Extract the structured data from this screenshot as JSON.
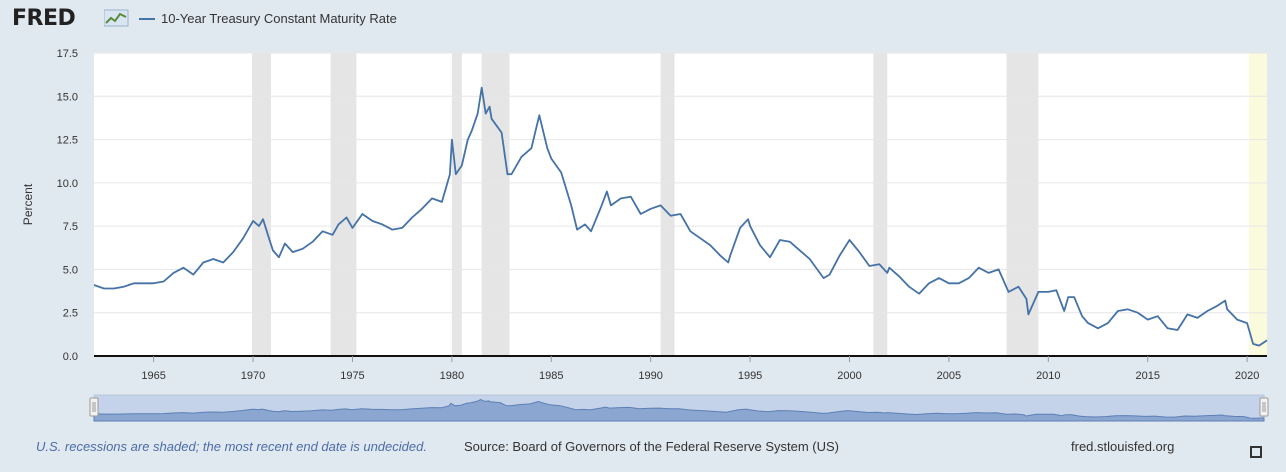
{
  "header": {
    "logo_text": "FRED",
    "series_name": "10-Year Treasury Constant Maturity Rate"
  },
  "footer": {
    "recession_note": "U.S. recessions are shaded; the most recent end date is undecided.",
    "source": "Source: Board of Governors of the Federal Reserve System (US)",
    "site": "fred.stlouisfed.org"
  },
  "colors": {
    "line": "#4572a7",
    "recession_shade": "#e5e5e5",
    "undecided_shade": "#fafadc",
    "background": "#e1e9f0",
    "plot_bg": "#ffffff"
  },
  "chart_data": {
    "type": "line",
    "title": "",
    "ylabel": "Percent",
    "xlabel": "",
    "ylim": [
      0,
      17.5
    ],
    "xlim": [
      1962.0,
      2021.0
    ],
    "y_ticks": [
      "0.0",
      "2.5",
      "5.0",
      "7.5",
      "10.0",
      "12.5",
      "15.0",
      "17.5"
    ],
    "x_ticks": [
      "1965",
      "1970",
      "1975",
      "1980",
      "1985",
      "1990",
      "1995",
      "2000",
      "2005",
      "2010",
      "2015",
      "2020"
    ],
    "grid": "horizontal",
    "series": [
      {
        "name": "10-Year Treasury Constant Maturity Rate",
        "x": [
          1962.0,
          1962.5,
          1963.0,
          1963.5,
          1964.0,
          1964.5,
          1965.0,
          1965.5,
          1966.0,
          1966.5,
          1967.0,
          1967.5,
          1968.0,
          1968.5,
          1969.0,
          1969.5,
          1970.0,
          1970.3,
          1970.5,
          1970.8,
          1971.0,
          1971.3,
          1971.6,
          1972.0,
          1972.5,
          1973.0,
          1973.5,
          1974.0,
          1974.3,
          1974.7,
          1975.0,
          1975.5,
          1976.0,
          1976.5,
          1977.0,
          1977.5,
          1978.0,
          1978.5,
          1979.0,
          1979.5,
          1979.9,
          1980.0,
          1980.2,
          1980.5,
          1980.8,
          1981.0,
          1981.3,
          1981.5,
          1981.7,
          1981.9,
          1982.0,
          1982.5,
          1982.8,
          1983.0,
          1983.5,
          1984.0,
          1984.4,
          1984.8,
          1985.0,
          1985.5,
          1986.0,
          1986.3,
          1986.7,
          1987.0,
          1987.5,
          1987.8,
          1988.0,
          1988.5,
          1989.0,
          1989.5,
          1990.0,
          1990.5,
          1991.0,
          1991.5,
          1992.0,
          1992.5,
          1993.0,
          1993.5,
          1993.9,
          1994.0,
          1994.5,
          1994.9,
          1995.0,
          1995.5,
          1996.0,
          1996.5,
          1997.0,
          1997.5,
          1998.0,
          1998.7,
          1999.0,
          1999.5,
          2000.0,
          2000.5,
          2001.0,
          2001.5,
          2001.9,
          2002.0,
          2002.5,
          2003.0,
          2003.5,
          2004.0,
          2004.5,
          2005.0,
          2005.5,
          2006.0,
          2006.5,
          2007.0,
          2007.5,
          2008.0,
          2008.5,
          2008.9,
          2009.0,
          2009.5,
          2010.0,
          2010.4,
          2010.8,
          2011.0,
          2011.3,
          2011.7,
          2012.0,
          2012.5,
          2013.0,
          2013.5,
          2014.0,
          2014.5,
          2015.0,
          2015.5,
          2016.0,
          2016.5,
          2017.0,
          2017.5,
          2018.0,
          2018.5,
          2018.9,
          2019.0,
          2019.5,
          2020.0,
          2020.3,
          2020.6,
          2021.0
        ],
        "values": [
          4.1,
          3.9,
          3.9,
          4.0,
          4.2,
          4.2,
          4.2,
          4.3,
          4.8,
          5.1,
          4.7,
          5.4,
          5.6,
          5.4,
          6.0,
          6.8,
          7.8,
          7.5,
          7.9,
          6.8,
          6.1,
          5.7,
          6.5,
          6.0,
          6.2,
          6.6,
          7.2,
          7.0,
          7.6,
          8.0,
          7.4,
          8.2,
          7.8,
          7.6,
          7.3,
          7.4,
          8.0,
          8.5,
          9.1,
          8.9,
          10.5,
          12.5,
          10.5,
          11.0,
          12.5,
          13.0,
          14.0,
          15.5,
          14.0,
          14.4,
          13.7,
          12.9,
          10.5,
          10.5,
          11.5,
          12.0,
          13.9,
          12.0,
          11.4,
          10.6,
          8.7,
          7.3,
          7.6,
          7.2,
          8.6,
          9.5,
          8.7,
          9.1,
          9.2,
          8.2,
          8.5,
          8.7,
          8.1,
          8.2,
          7.2,
          6.8,
          6.4,
          5.8,
          5.4,
          5.8,
          7.4,
          7.9,
          7.5,
          6.4,
          5.7,
          6.7,
          6.6,
          6.1,
          5.6,
          4.5,
          4.7,
          5.8,
          6.7,
          6.0,
          5.2,
          5.3,
          4.8,
          5.1,
          4.6,
          4.0,
          3.6,
          4.2,
          4.5,
          4.2,
          4.2,
          4.5,
          5.1,
          4.8,
          5.0,
          3.7,
          4.0,
          3.3,
          2.4,
          3.7,
          3.7,
          3.8,
          2.6,
          3.4,
          3.4,
          2.3,
          1.9,
          1.6,
          1.9,
          2.6,
          2.7,
          2.5,
          2.1,
          2.3,
          1.6,
          1.5,
          2.4,
          2.2,
          2.6,
          2.9,
          3.2,
          2.7,
          2.1,
          1.9,
          0.7,
          0.6,
          0.9
        ]
      }
    ],
    "recessions": [
      [
        1969.95,
        1970.9
      ],
      [
        1973.9,
        1975.2
      ],
      [
        1980.0,
        1980.5
      ],
      [
        1981.5,
        1982.9
      ],
      [
        1990.5,
        1991.2
      ],
      [
        2001.2,
        2001.9
      ],
      [
        2007.9,
        2009.5
      ]
    ],
    "recession_undecided": [
      2020.1,
      2021.0
    ]
  }
}
